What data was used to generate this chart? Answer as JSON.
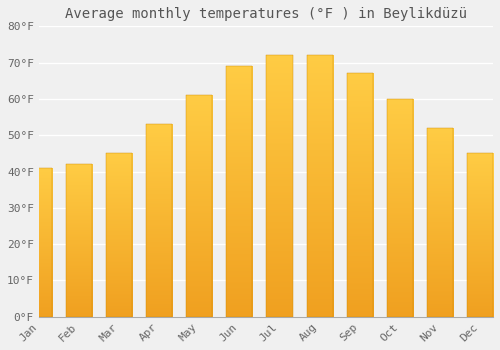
{
  "title": "Average monthly temperatures (°F ) in Beylikdüzü",
  "months": [
    "Jan",
    "Feb",
    "Mar",
    "Apr",
    "May",
    "Jun",
    "Jul",
    "Aug",
    "Sep",
    "Oct",
    "Nov",
    "Dec"
  ],
  "values": [
    41,
    42,
    45,
    53,
    61,
    69,
    72,
    72,
    67,
    60,
    52,
    45
  ],
  "bar_color_bottom": "#F0A020",
  "bar_color_top": "#FFCC44",
  "background_color": "#f0f0f0",
  "grid_color": "#ffffff",
  "ylim": [
    0,
    80
  ],
  "ytick_step": 10,
  "title_fontsize": 10,
  "tick_fontsize": 8,
  "font_family": "monospace",
  "tick_color": "#666666",
  "title_color": "#555555"
}
